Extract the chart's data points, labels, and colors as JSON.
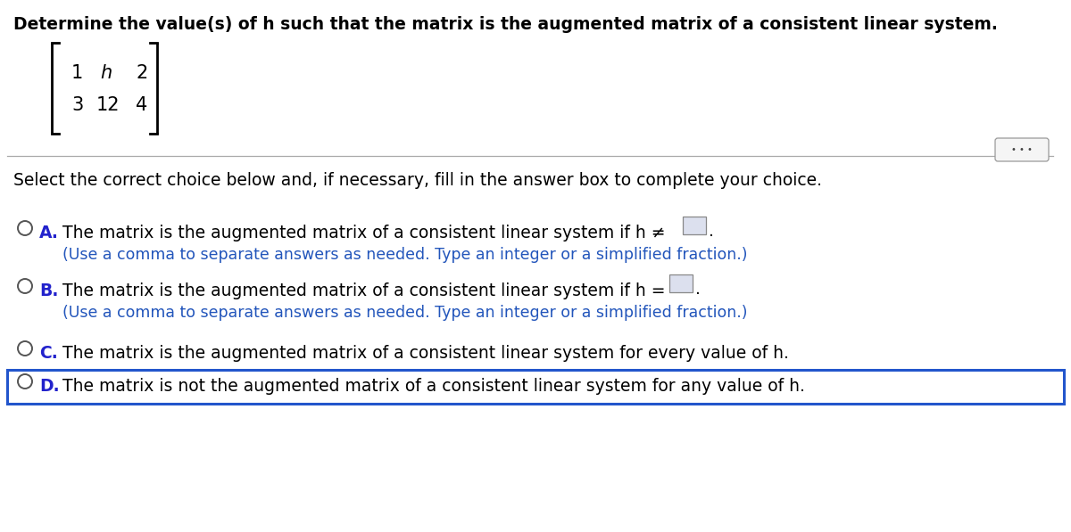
{
  "title": "Determine the value(s) of h such that the matrix is the augmented matrix of a consistent linear system.",
  "select_text": "Select the correct choice below and, if necessary, fill in the answer box to complete your choice.",
  "choice_A_bold": "A.",
  "choice_A_text": "The matrix is the augmented matrix of a consistent linear system if h ≠",
  "choice_A_hint": "(Use a comma to separate answers as needed. Type an integer or a simplified fraction.)",
  "choice_B_bold": "B.",
  "choice_B_text": "The matrix is the augmented matrix of a consistent linear system if h =",
  "choice_B_hint": "(Use a comma to separate answers as needed. Type an integer or a simplified fraction.)",
  "choice_C_bold": "C.",
  "choice_C_text": "The matrix is the augmented matrix of a consistent linear system for every value of h.",
  "choice_D_bold": "D.",
  "choice_D_text": "The matrix is not the augmented matrix of a consistent linear system for any value of h.",
  "bg_color": "#ffffff",
  "text_color": "#000000",
  "bold_color": "#2222cc",
  "hint_color": "#2255bb",
  "separator_color": "#aaaaaa",
  "highlight_border_color": "#2255cc",
  "circle_edge_color": "#555555",
  "box_fill": "#dce0ee",
  "box_border": "#888888",
  "dots_btn_bg": "#f5f5f5",
  "dots_btn_border": "#999999",
  "title_fontsize": 13.5,
  "select_fontsize": 13.5,
  "choice_fontsize": 13.5,
  "hint_fontsize": 12.5,
  "mat_fontsize": 15
}
